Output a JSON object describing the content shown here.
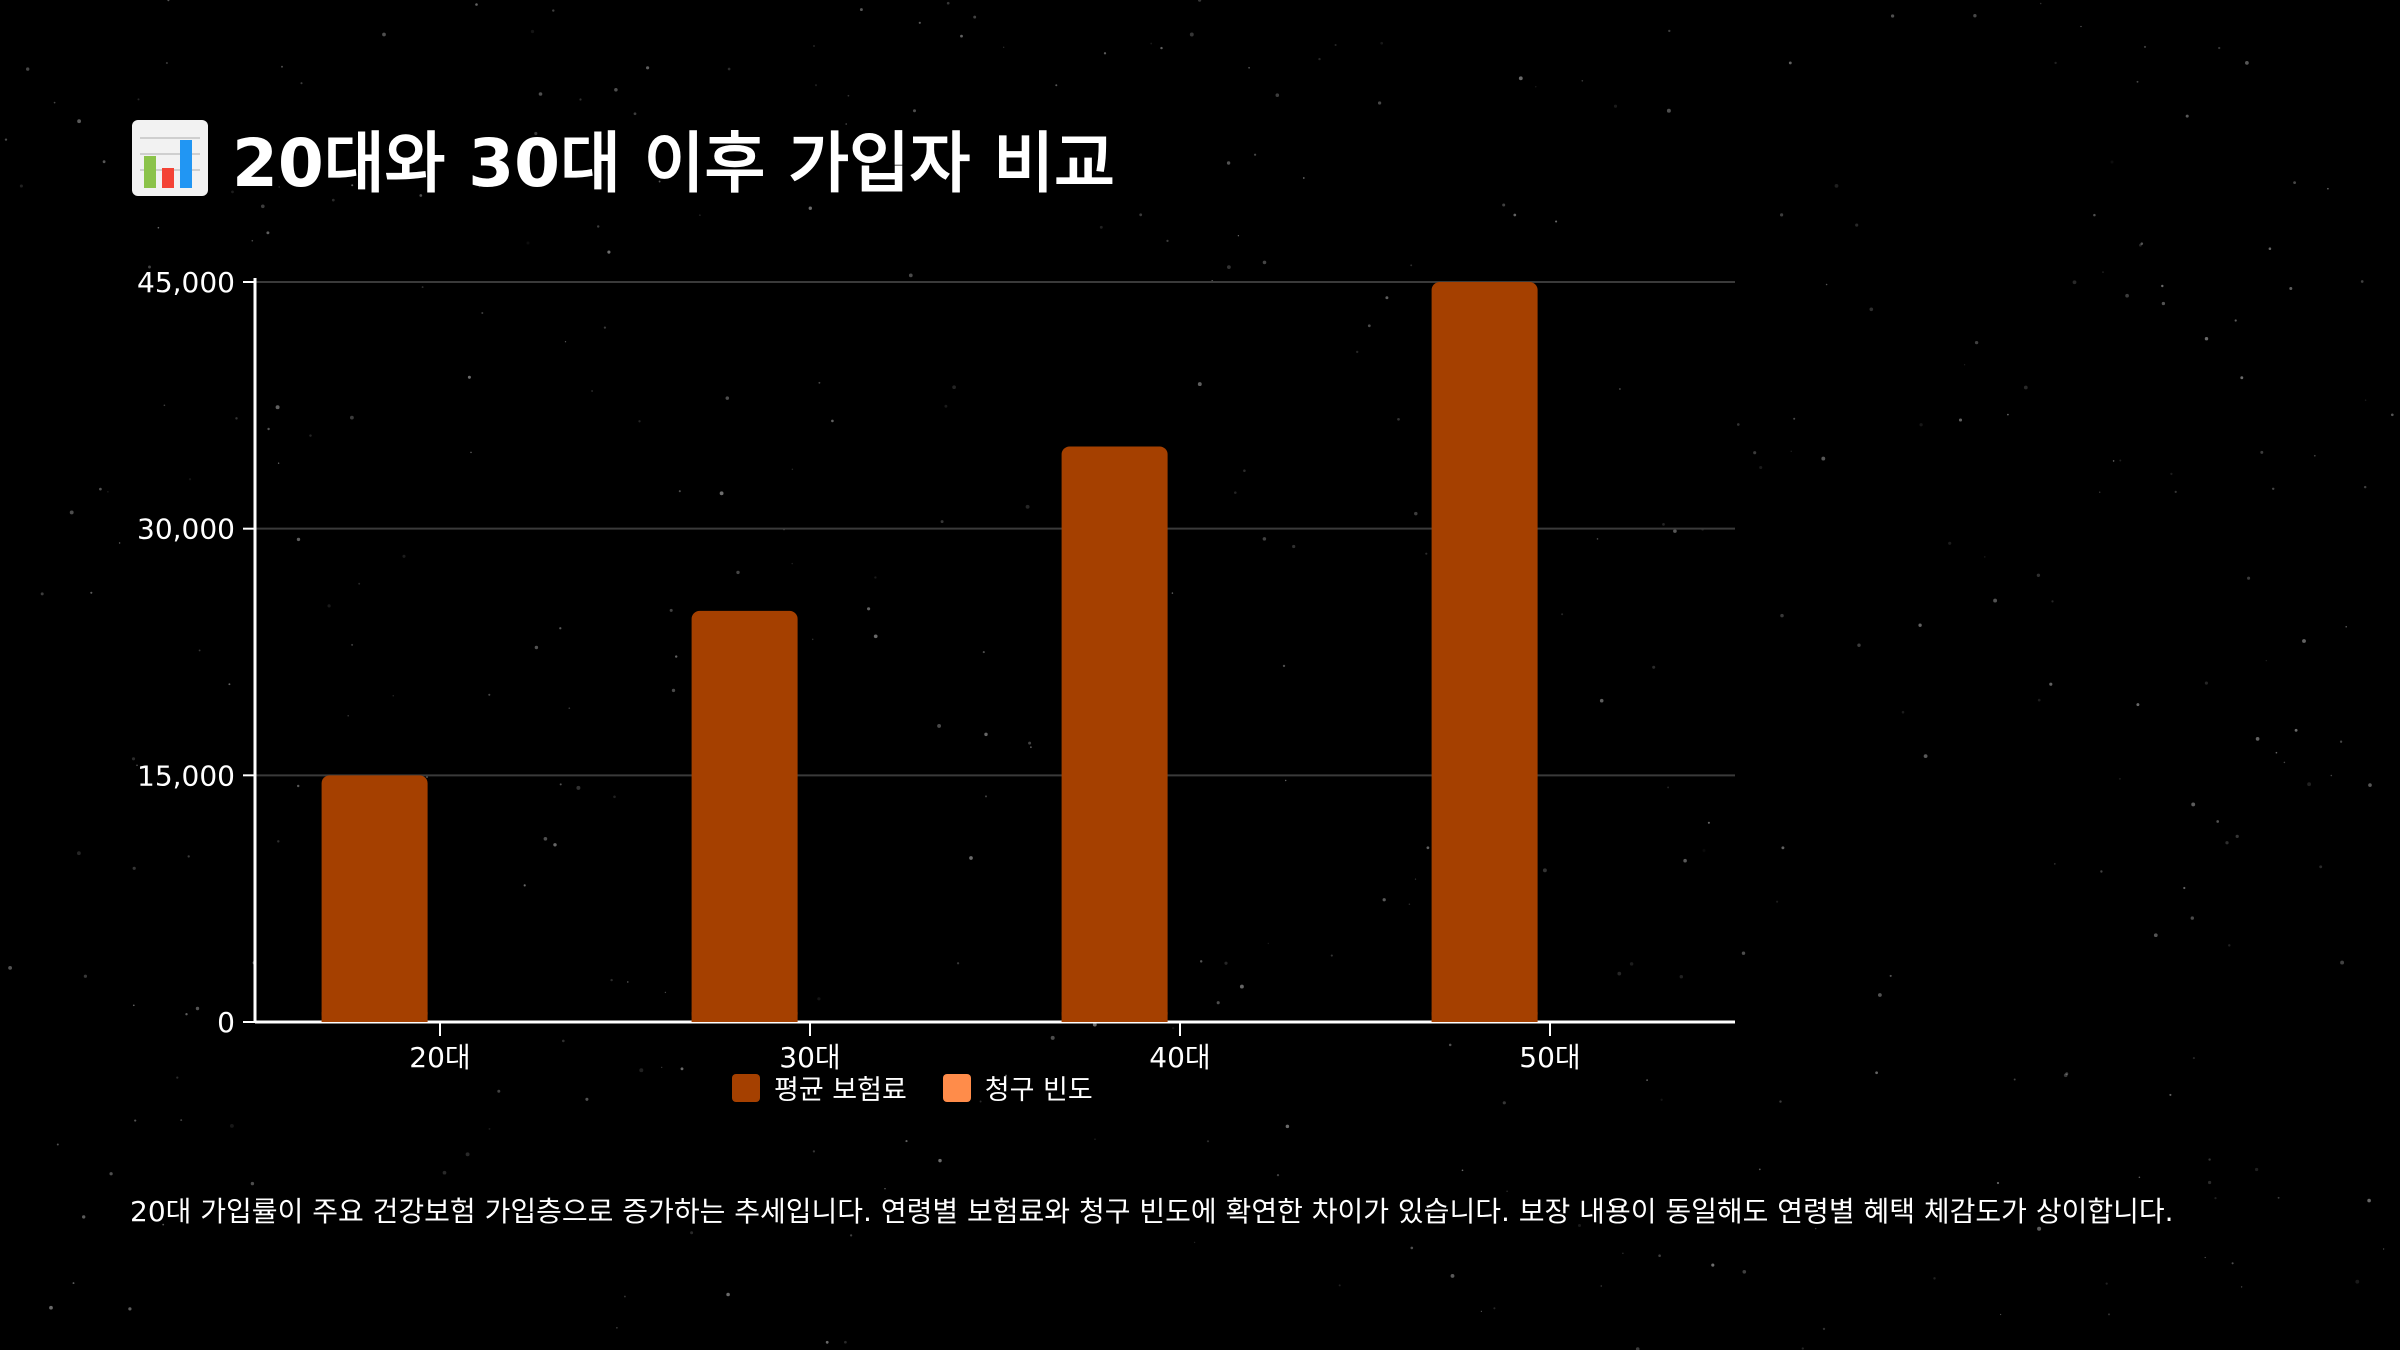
{
  "page": {
    "title": "20대와 30대 이후 가입자 비교",
    "title_icon": "bar-chart-icon",
    "caption": "20대 가입률이 주요 건강보험 가입층으로 증가하는 추세입니다. 연령별 보험료와 청구 빈도에 확연한 차이가 있습니다. 보장 내용이 동일해도 연령별 혜택 체감도가 상이합니다."
  },
  "colors": {
    "background": "#000000",
    "series_premium": "#A54000",
    "series_claims": "#FF8C4A",
    "grid": "#3a3a3a",
    "axis": "#ffffff"
  },
  "chart_data": {
    "type": "bar",
    "categories": [
      "20대",
      "30대",
      "40대",
      "50대"
    ],
    "series": [
      {
        "name": "평균 보험료",
        "values": [
          15000,
          25000,
          35000,
          45000
        ]
      },
      {
        "name": "청구 빈도",
        "values": [
          0,
          0,
          0,
          0
        ]
      }
    ],
    "ylim": [
      0,
      45000
    ],
    "yticks": [
      0,
      15000,
      30000,
      45000
    ],
    "ytick_labels": [
      "0",
      "15,000",
      "30,000",
      "45,000"
    ],
    "grid": true,
    "legend_position": "bottom-center"
  }
}
